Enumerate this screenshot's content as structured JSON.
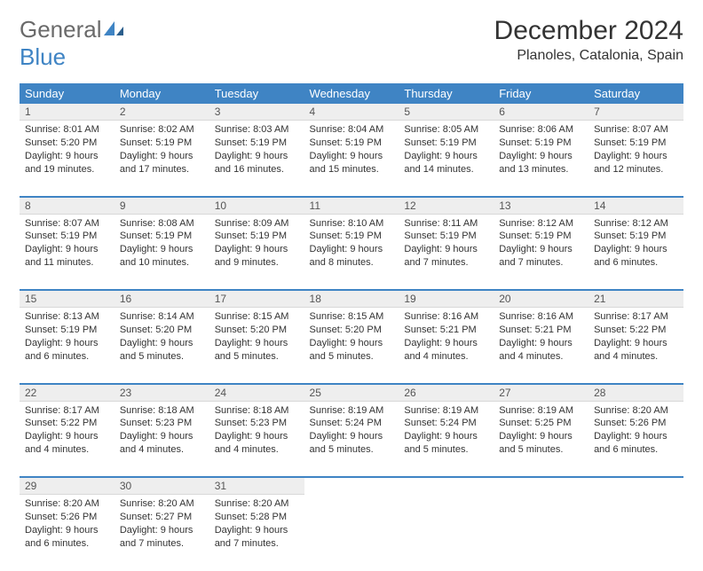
{
  "brand": {
    "part1": "General",
    "part2": "Blue"
  },
  "title": "December 2024",
  "location": "Planoles, Catalonia, Spain",
  "colors": {
    "accent": "#3f84c4",
    "header_bg": "#3f84c4",
    "header_text": "#ffffff",
    "daynum_bg": "#eeeeee",
    "body_text": "#333333"
  },
  "day_headers": [
    "Sunday",
    "Monday",
    "Tuesday",
    "Wednesday",
    "Thursday",
    "Friday",
    "Saturday"
  ],
  "weeks": [
    [
      {
        "n": "1",
        "sr": "Sunrise: 8:01 AM",
        "ss": "Sunset: 5:20 PM",
        "dl1": "Daylight: 9 hours",
        "dl2": "and 19 minutes."
      },
      {
        "n": "2",
        "sr": "Sunrise: 8:02 AM",
        "ss": "Sunset: 5:19 PM",
        "dl1": "Daylight: 9 hours",
        "dl2": "and 17 minutes."
      },
      {
        "n": "3",
        "sr": "Sunrise: 8:03 AM",
        "ss": "Sunset: 5:19 PM",
        "dl1": "Daylight: 9 hours",
        "dl2": "and 16 minutes."
      },
      {
        "n": "4",
        "sr": "Sunrise: 8:04 AM",
        "ss": "Sunset: 5:19 PM",
        "dl1": "Daylight: 9 hours",
        "dl2": "and 15 minutes."
      },
      {
        "n": "5",
        "sr": "Sunrise: 8:05 AM",
        "ss": "Sunset: 5:19 PM",
        "dl1": "Daylight: 9 hours",
        "dl2": "and 14 minutes."
      },
      {
        "n": "6",
        "sr": "Sunrise: 8:06 AM",
        "ss": "Sunset: 5:19 PM",
        "dl1": "Daylight: 9 hours",
        "dl2": "and 13 minutes."
      },
      {
        "n": "7",
        "sr": "Sunrise: 8:07 AM",
        "ss": "Sunset: 5:19 PM",
        "dl1": "Daylight: 9 hours",
        "dl2": "and 12 minutes."
      }
    ],
    [
      {
        "n": "8",
        "sr": "Sunrise: 8:07 AM",
        "ss": "Sunset: 5:19 PM",
        "dl1": "Daylight: 9 hours",
        "dl2": "and 11 minutes."
      },
      {
        "n": "9",
        "sr": "Sunrise: 8:08 AM",
        "ss": "Sunset: 5:19 PM",
        "dl1": "Daylight: 9 hours",
        "dl2": "and 10 minutes."
      },
      {
        "n": "10",
        "sr": "Sunrise: 8:09 AM",
        "ss": "Sunset: 5:19 PM",
        "dl1": "Daylight: 9 hours",
        "dl2": "and 9 minutes."
      },
      {
        "n": "11",
        "sr": "Sunrise: 8:10 AM",
        "ss": "Sunset: 5:19 PM",
        "dl1": "Daylight: 9 hours",
        "dl2": "and 8 minutes."
      },
      {
        "n": "12",
        "sr": "Sunrise: 8:11 AM",
        "ss": "Sunset: 5:19 PM",
        "dl1": "Daylight: 9 hours",
        "dl2": "and 7 minutes."
      },
      {
        "n": "13",
        "sr": "Sunrise: 8:12 AM",
        "ss": "Sunset: 5:19 PM",
        "dl1": "Daylight: 9 hours",
        "dl2": "and 7 minutes."
      },
      {
        "n": "14",
        "sr": "Sunrise: 8:12 AM",
        "ss": "Sunset: 5:19 PM",
        "dl1": "Daylight: 9 hours",
        "dl2": "and 6 minutes."
      }
    ],
    [
      {
        "n": "15",
        "sr": "Sunrise: 8:13 AM",
        "ss": "Sunset: 5:19 PM",
        "dl1": "Daylight: 9 hours",
        "dl2": "and 6 minutes."
      },
      {
        "n": "16",
        "sr": "Sunrise: 8:14 AM",
        "ss": "Sunset: 5:20 PM",
        "dl1": "Daylight: 9 hours",
        "dl2": "and 5 minutes."
      },
      {
        "n": "17",
        "sr": "Sunrise: 8:15 AM",
        "ss": "Sunset: 5:20 PM",
        "dl1": "Daylight: 9 hours",
        "dl2": "and 5 minutes."
      },
      {
        "n": "18",
        "sr": "Sunrise: 8:15 AM",
        "ss": "Sunset: 5:20 PM",
        "dl1": "Daylight: 9 hours",
        "dl2": "and 5 minutes."
      },
      {
        "n": "19",
        "sr": "Sunrise: 8:16 AM",
        "ss": "Sunset: 5:21 PM",
        "dl1": "Daylight: 9 hours",
        "dl2": "and 4 minutes."
      },
      {
        "n": "20",
        "sr": "Sunrise: 8:16 AM",
        "ss": "Sunset: 5:21 PM",
        "dl1": "Daylight: 9 hours",
        "dl2": "and 4 minutes."
      },
      {
        "n": "21",
        "sr": "Sunrise: 8:17 AM",
        "ss": "Sunset: 5:22 PM",
        "dl1": "Daylight: 9 hours",
        "dl2": "and 4 minutes."
      }
    ],
    [
      {
        "n": "22",
        "sr": "Sunrise: 8:17 AM",
        "ss": "Sunset: 5:22 PM",
        "dl1": "Daylight: 9 hours",
        "dl2": "and 4 minutes."
      },
      {
        "n": "23",
        "sr": "Sunrise: 8:18 AM",
        "ss": "Sunset: 5:23 PM",
        "dl1": "Daylight: 9 hours",
        "dl2": "and 4 minutes."
      },
      {
        "n": "24",
        "sr": "Sunrise: 8:18 AM",
        "ss": "Sunset: 5:23 PM",
        "dl1": "Daylight: 9 hours",
        "dl2": "and 4 minutes."
      },
      {
        "n": "25",
        "sr": "Sunrise: 8:19 AM",
        "ss": "Sunset: 5:24 PM",
        "dl1": "Daylight: 9 hours",
        "dl2": "and 5 minutes."
      },
      {
        "n": "26",
        "sr": "Sunrise: 8:19 AM",
        "ss": "Sunset: 5:24 PM",
        "dl1": "Daylight: 9 hours",
        "dl2": "and 5 minutes."
      },
      {
        "n": "27",
        "sr": "Sunrise: 8:19 AM",
        "ss": "Sunset: 5:25 PM",
        "dl1": "Daylight: 9 hours",
        "dl2": "and 5 minutes."
      },
      {
        "n": "28",
        "sr": "Sunrise: 8:20 AM",
        "ss": "Sunset: 5:26 PM",
        "dl1": "Daylight: 9 hours",
        "dl2": "and 6 minutes."
      }
    ],
    [
      {
        "n": "29",
        "sr": "Sunrise: 8:20 AM",
        "ss": "Sunset: 5:26 PM",
        "dl1": "Daylight: 9 hours",
        "dl2": "and 6 minutes."
      },
      {
        "n": "30",
        "sr": "Sunrise: 8:20 AM",
        "ss": "Sunset: 5:27 PM",
        "dl1": "Daylight: 9 hours",
        "dl2": "and 7 minutes."
      },
      {
        "n": "31",
        "sr": "Sunrise: 8:20 AM",
        "ss": "Sunset: 5:28 PM",
        "dl1": "Daylight: 9 hours",
        "dl2": "and 7 minutes."
      },
      null,
      null,
      null,
      null
    ]
  ]
}
